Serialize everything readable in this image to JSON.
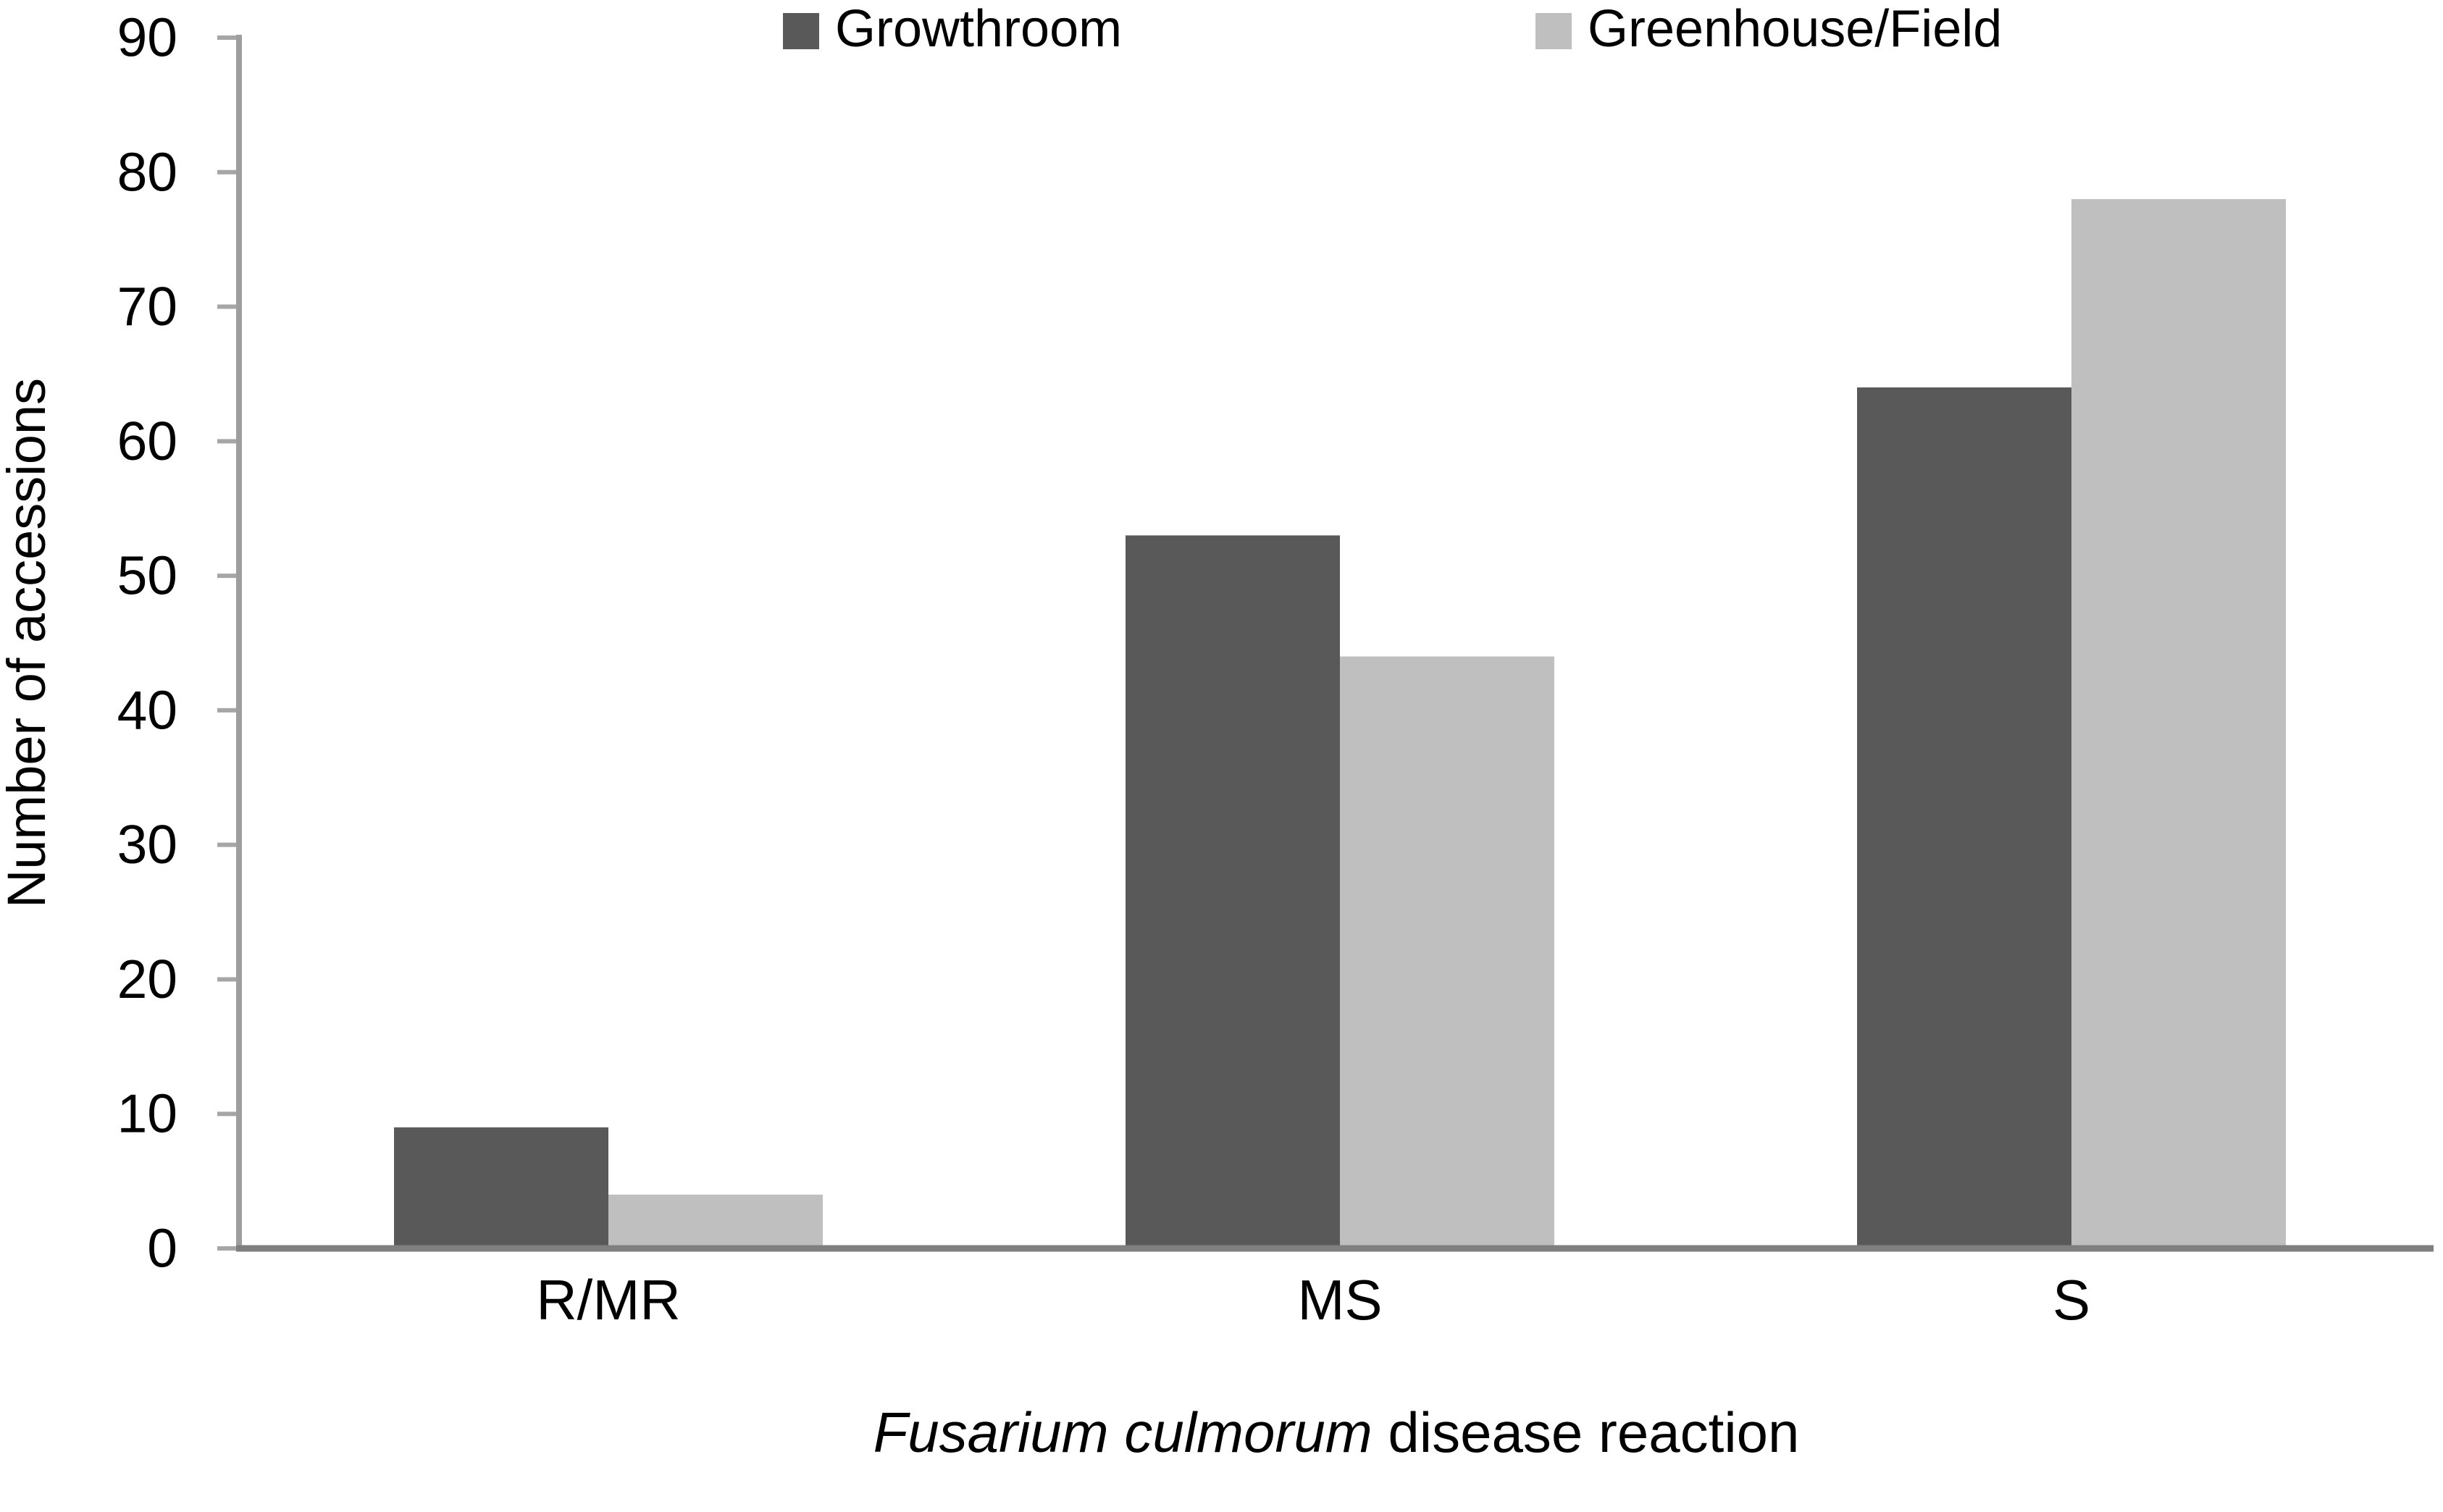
{
  "chart_data": {
    "type": "bar",
    "title": "",
    "categories": [
      "R/MR",
      "MS",
      "S"
    ],
    "series": [
      {
        "name": "Growthroom",
        "color": "#595959",
        "values": [
          9,
          53,
          64
        ]
      },
      {
        "name": "Greenhouse/Field",
        "color": "#BFBFBF",
        "values": [
          4,
          44,
          78
        ]
      }
    ],
    "xlabel_italic": "Fusarium culmorum",
    "xlabel_regular": " disease reaction",
    "ylabel": "Number of accessions",
    "ylim": [
      0,
      90
    ],
    "yticks": [
      0,
      10,
      20,
      30,
      40,
      50,
      60,
      70,
      80,
      90
    ],
    "grid": false,
    "legend_position": "top",
    "axis_colors": {
      "value_axis": "#9E9E9E",
      "baseline": "#7F7F7F",
      "tick": "#A6A6A6",
      "text": "#000000"
    }
  }
}
